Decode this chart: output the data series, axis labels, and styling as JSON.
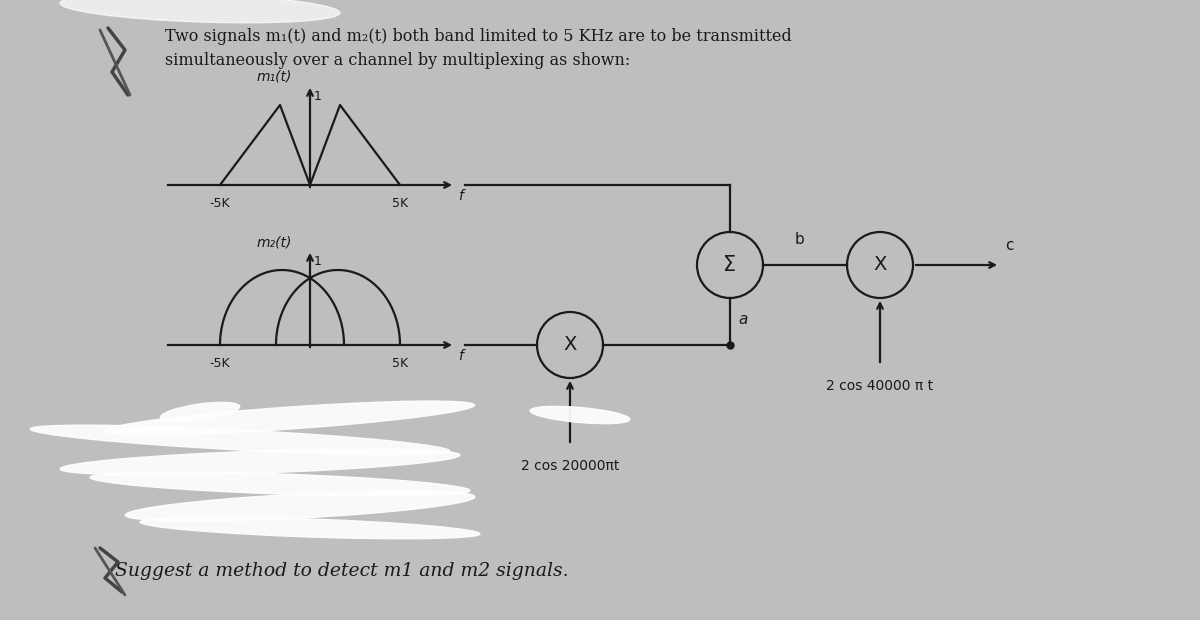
{
  "bg_color": "#bebebe",
  "title_line1": "Two signals m₁(t) and m₂(t) both band limited to 5 KHz are to be transmitted",
  "title_line2": "simultaneously over a channel by multiplexing as shown:",
  "m1_label": "m₁(t)",
  "m2_label": "m₂(t)",
  "freq_label": "f",
  "neg5k": "-5K",
  "pos5k": "5K",
  "carrier1": "2 cos 20000πt",
  "carrier2": "2 cos 40000 π t",
  "point_a": "a",
  "point_b": "b",
  "point_c": "c",
  "suggest_text": "Suggest a method to detect m1 and m2 signals.",
  "sum_symbol": "Σ",
  "mult_symbol": "X",
  "one_label": "1",
  "line_color": "#1a1a1a",
  "text_color": "#1a1a1a",
  "white": "#ffffff"
}
